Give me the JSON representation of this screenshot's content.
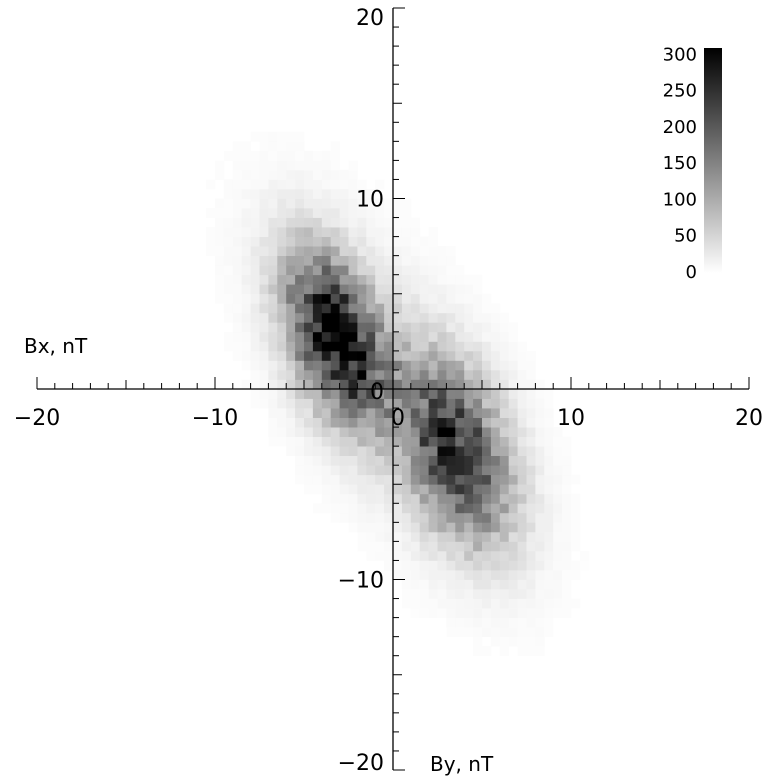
{
  "chart_data": {
    "type": "heatmap",
    "title": "",
    "xlabel": "By, nT",
    "ylabel": "Bx, nT",
    "xlim": [
      -20,
      20
    ],
    "ylim": [
      -20,
      20
    ],
    "x_ticks": [
      {
        "value": -20,
        "label": "−20"
      },
      {
        "value": -10,
        "label": "−10"
      },
      {
        "value": 0,
        "label": "0"
      },
      {
        "value": 10,
        "label": "10"
      },
      {
        "value": 20,
        "label": "20"
      }
    ],
    "y_ticks": [
      {
        "value": 20,
        "label": "20"
      },
      {
        "value": 10,
        "label": "10"
      },
      {
        "value": 0,
        "label": "0"
      },
      {
        "value": -10,
        "label": "−10"
      },
      {
        "value": -20,
        "label": "−20"
      }
    ],
    "colorbar": {
      "min": 0,
      "max": 310,
      "ticks": [
        {
          "value": 0,
          "label": "0"
        },
        {
          "value": 50,
          "label": "50"
        },
        {
          "value": 100,
          "label": "100"
        },
        {
          "value": 150,
          "label": "150"
        },
        {
          "value": 200,
          "label": "200"
        },
        {
          "value": 250,
          "label": "250"
        },
        {
          "value": 300,
          "label": "300"
        }
      ],
      "colormap": "grayscale (white = 0, black = max)"
    },
    "bin_size": 0.5,
    "clusters": [
      {
        "center": [
          -3.2,
          2.7
        ],
        "sigma": [
          1.9,
          3.0
        ],
        "correlation": -0.45,
        "peak": 300
      },
      {
        "center": [
          3.5,
          -3.2
        ],
        "sigma": [
          2.1,
          3.2
        ],
        "correlation": -0.4,
        "peak": 240
      },
      {
        "center": [
          0.0,
          0.0
        ],
        "sigma": [
          5.0,
          6.5
        ],
        "correlation": -0.65,
        "peak": 22
      }
    ]
  }
}
